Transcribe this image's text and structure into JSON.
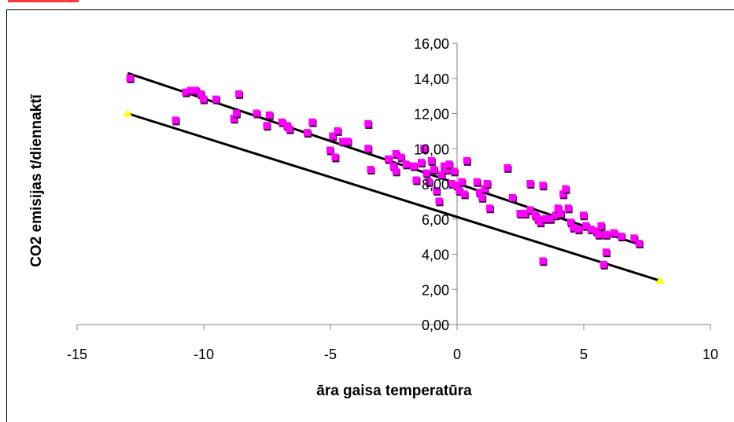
{
  "chart_data": {
    "type": "scatter",
    "xlabel": "āra gaisa temperatūra",
    "ylabel": "CO2 emisijas t/diennaktī",
    "xlim": [
      -15,
      10
    ],
    "ylim": [
      0,
      16
    ],
    "x_ticks": [
      "-15",
      "-10",
      "-5",
      "0",
      "5",
      "10"
    ],
    "y_ticks": [
      "0,00",
      "2,00",
      "4,00",
      "6,00",
      "8,00",
      "10,00",
      "12,00",
      "14,00",
      "16,00"
    ],
    "grid": false,
    "legend": "none",
    "series": [
      {
        "marker_color": "#ff00ff",
        "points": [
          [
            -12.9,
            14.0
          ],
          [
            -11.1,
            11.6
          ],
          [
            -10.7,
            13.2
          ],
          [
            -10.5,
            13.3
          ],
          [
            -10.3,
            13.3
          ],
          [
            -10.1,
            13.1
          ],
          [
            -10.0,
            12.8
          ],
          [
            -9.5,
            12.8
          ],
          [
            -8.8,
            11.7
          ],
          [
            -8.7,
            12.0
          ],
          [
            -8.6,
            13.1
          ],
          [
            -7.9,
            12.0
          ],
          [
            -7.5,
            11.3
          ],
          [
            -7.4,
            11.9
          ],
          [
            -6.9,
            11.5
          ],
          [
            -6.7,
            11.3
          ],
          [
            -6.6,
            11.1
          ],
          [
            -5.9,
            10.9
          ],
          [
            -5.7,
            11.5
          ],
          [
            -5.0,
            9.9
          ],
          [
            -4.9,
            10.7
          ],
          [
            -4.8,
            9.5
          ],
          [
            -4.7,
            11.0
          ],
          [
            -4.5,
            10.4
          ],
          [
            -4.3,
            10.4
          ],
          [
            -3.5,
            11.4
          ],
          [
            -3.5,
            10.0
          ],
          [
            -3.4,
            8.8
          ],
          [
            -2.7,
            9.4
          ],
          [
            -2.5,
            9.0
          ],
          [
            -2.4,
            9.7
          ],
          [
            -2.4,
            8.7
          ],
          [
            -2.2,
            9.5
          ],
          [
            -2.0,
            9.1
          ],
          [
            -1.7,
            9.0
          ],
          [
            -1.6,
            8.2
          ],
          [
            -1.4,
            9.2
          ],
          [
            -1.3,
            10.0
          ],
          [
            -1.2,
            8.6
          ],
          [
            -1.1,
            8.1
          ],
          [
            -1.0,
            9.3
          ],
          [
            -0.9,
            8.8
          ],
          [
            -0.8,
            7.6
          ],
          [
            -0.7,
            7.0
          ],
          [
            -0.6,
            8.5
          ],
          [
            -0.5,
            9.0
          ],
          [
            -0.4,
            8.8
          ],
          [
            -0.3,
            9.1
          ],
          [
            -0.2,
            8.0
          ],
          [
            -0.1,
            8.7
          ],
          [
            0.0,
            7.9
          ],
          [
            0.1,
            7.6
          ],
          [
            0.2,
            8.1
          ],
          [
            0.3,
            7.4
          ],
          [
            0.4,
            9.3
          ],
          [
            0.8,
            8.1
          ],
          [
            0.9,
            7.5
          ],
          [
            1.0,
            7.2
          ],
          [
            1.1,
            7.7
          ],
          [
            1.2,
            8.0
          ],
          [
            1.3,
            6.6
          ],
          [
            2.0,
            8.9
          ],
          [
            2.2,
            7.2
          ],
          [
            2.5,
            6.3
          ],
          [
            2.7,
            6.3
          ],
          [
            2.9,
            6.5
          ],
          [
            2.9,
            8.0
          ],
          [
            3.1,
            6.2
          ],
          [
            3.2,
            6.0
          ],
          [
            3.3,
            5.8
          ],
          [
            3.4,
            7.9
          ],
          [
            3.5,
            6.0
          ],
          [
            3.7,
            6.0
          ],
          [
            3.9,
            6.2
          ],
          [
            4.0,
            6.6
          ],
          [
            4.1,
            6.3
          ],
          [
            4.2,
            7.4
          ],
          [
            4.3,
            7.7
          ],
          [
            4.4,
            6.6
          ],
          [
            4.5,
            5.8
          ],
          [
            4.6,
            5.5
          ],
          [
            4.8,
            5.4
          ],
          [
            5.0,
            6.2
          ],
          [
            5.1,
            5.6
          ],
          [
            5.3,
            5.4
          ],
          [
            5.5,
            5.3
          ],
          [
            5.6,
            5.1
          ],
          [
            5.7,
            5.6
          ],
          [
            5.9,
            5.1
          ],
          [
            6.2,
            5.2
          ],
          [
            6.5,
            5.0
          ],
          [
            7.0,
            4.9
          ],
          [
            7.2,
            4.6
          ],
          [
            3.4,
            3.6
          ],
          [
            5.8,
            3.4
          ],
          [
            5.9,
            4.1
          ]
        ]
      }
    ],
    "trendlines": [
      {
        "color": "#000000",
        "from": [
          -13,
          14.3
        ],
        "to": [
          7.3,
          4.5
        ]
      },
      {
        "color": "#000000",
        "from": [
          -13,
          12.0
        ],
        "to": [
          8,
          2.5
        ]
      }
    ],
    "endpoint_markers": {
      "color": "#ffff00",
      "points": [
        [
          -13,
          12.0
        ],
        [
          8,
          2.5
        ]
      ]
    }
  }
}
